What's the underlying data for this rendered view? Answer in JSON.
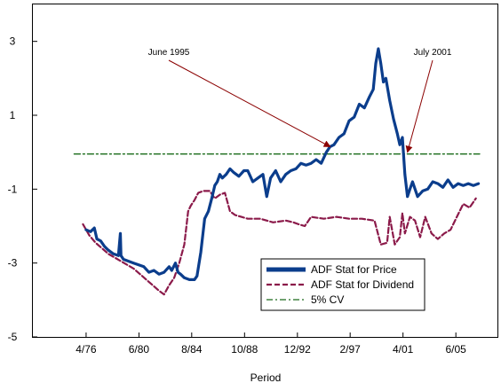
{
  "chart_data": {
    "type": "line",
    "title": "",
    "xlabel": "Period",
    "ylabel": "",
    "ylim": [
      -5,
      4
    ],
    "y_ticks": [
      3,
      1,
      -1,
      -3,
      -5
    ],
    "x_tick_labels": [
      "4/76",
      "6/80",
      "8/84",
      "10/88",
      "12/92",
      "2/97",
      "4/01",
      "6/05"
    ],
    "x_tick_values": [
      1976.25,
      1980.42,
      1984.58,
      1988.75,
      1992.92,
      1997.08,
      2001.25,
      2005.42
    ],
    "xlim": [
      1972.05,
      2008.7
    ],
    "grid": false,
    "legend_position": "bottom-right inside plot",
    "series": [
      {
        "name": "ADF Stat for Price",
        "color": "#0b3d8c",
        "style": "solid",
        "x": [
          1976.25,
          1976.6,
          1976.9,
          1977.1,
          1977.4,
          1977.7,
          1978.0,
          1978.4,
          1978.8,
          1978.95,
          1979.0,
          1979.2,
          1979.6,
          1980.0,
          1980.4,
          1980.8,
          1981.2,
          1981.6,
          1982.0,
          1982.4,
          1982.8,
          1983.0,
          1983.3,
          1983.5,
          1983.7,
          1984.0,
          1984.4,
          1984.8,
          1985.0,
          1985.3,
          1985.6,
          1985.9,
          1986.2,
          1986.4,
          1986.6,
          1986.8,
          1987.0,
          1987.3,
          1987.6,
          1987.9,
          1988.3,
          1988.7,
          1989.0,
          1989.4,
          1989.8,
          1990.2,
          1990.5,
          1990.8,
          1991.2,
          1991.6,
          1992.0,
          1992.4,
          1992.8,
          1993.2,
          1993.6,
          1994.0,
          1994.4,
          1994.8,
          1995.2,
          1995.5,
          1995.8,
          1996.2,
          1996.6,
          1997.0,
          1997.4,
          1997.8,
          1998.2,
          1998.6,
          1998.9,
          1999.1,
          1999.3,
          1999.5,
          1999.7,
          1999.9,
          2000.2,
          2000.5,
          2000.8,
          2001.0,
          2001.2,
          2001.4,
          2001.6,
          2001.8,
          2002.0,
          2002.4,
          2002.8,
          2003.2,
          2003.6,
          2004.0,
          2004.4,
          2004.8,
          2005.2,
          2005.6,
          2006.0,
          2006.4,
          2006.8,
          2007.2
        ],
        "y": [
          -2.1,
          -2.15,
          -2.05,
          -2.35,
          -2.4,
          -2.55,
          -2.65,
          -2.75,
          -2.8,
          -2.2,
          -2.8,
          -2.9,
          -2.95,
          -3.0,
          -3.05,
          -3.1,
          -3.25,
          -3.2,
          -3.3,
          -3.25,
          -3.1,
          -3.2,
          -3.0,
          -3.25,
          -3.3,
          -3.4,
          -3.45,
          -3.45,
          -3.35,
          -2.7,
          -1.8,
          -1.6,
          -1.2,
          -0.9,
          -0.8,
          -0.6,
          -0.7,
          -0.6,
          -0.45,
          -0.55,
          -0.65,
          -0.5,
          -0.5,
          -0.8,
          -0.7,
          -0.6,
          -1.2,
          -0.7,
          -0.5,
          -0.8,
          -0.6,
          -0.5,
          -0.45,
          -0.3,
          -0.35,
          -0.3,
          -0.2,
          -0.3,
          0.0,
          0.15,
          0.2,
          0.4,
          0.5,
          0.85,
          0.95,
          1.3,
          1.2,
          1.5,
          1.7,
          2.4,
          2.8,
          2.4,
          1.9,
          2.0,
          1.4,
          0.9,
          0.5,
          0.2,
          0.4,
          -0.6,
          -1.2,
          -1.0,
          -0.8,
          -1.2,
          -1.05,
          -1.0,
          -0.8,
          -0.85,
          -0.95,
          -0.75,
          -0.95,
          -0.85,
          -0.9,
          -0.85,
          -0.9,
          -0.85
        ]
      },
      {
        "name": "ADF Stat for Dividend",
        "color": "#8b1a4a",
        "style": "dashed",
        "x": [
          1976.0,
          1976.5,
          1977.0,
          1977.5,
          1978.0,
          1978.5,
          1979.0,
          1979.5,
          1980.0,
          1980.5,
          1981.0,
          1981.5,
          1982.0,
          1982.4,
          1982.8,
          1983.2,
          1983.6,
          1984.0,
          1984.3,
          1984.5,
          1984.8,
          1985.1,
          1985.5,
          1986.0,
          1986.4,
          1986.8,
          1987.2,
          1987.6,
          1988.0,
          1988.5,
          1989.0,
          1990.0,
          1991.0,
          1992.0,
          1992.6,
          1993.0,
          1993.5,
          1994.0,
          1995.0,
          1996.0,
          1997.0,
          1998.0,
          1999.0,
          1999.5,
          2000.0,
          2000.2,
          2000.6,
          2001.0,
          2001.2,
          2001.4,
          2001.8,
          2002.2,
          2002.6,
          2003.0,
          2003.5,
          2004.0,
          2004.5,
          2005.0,
          2005.5,
          2006.0,
          2006.5,
          2007.0
        ],
        "y": [
          -1.95,
          -2.25,
          -2.45,
          -2.6,
          -2.75,
          -2.85,
          -2.95,
          -3.05,
          -3.15,
          -3.3,
          -3.45,
          -3.6,
          -3.75,
          -3.85,
          -3.6,
          -3.4,
          -3.0,
          -2.5,
          -1.6,
          -1.45,
          -1.3,
          -1.1,
          -1.05,
          -1.05,
          -1.25,
          -1.15,
          -1.1,
          -1.6,
          -1.7,
          -1.75,
          -1.8,
          -1.8,
          -1.9,
          -1.85,
          -1.9,
          -1.95,
          -2.0,
          -1.75,
          -1.8,
          -1.75,
          -1.8,
          -1.8,
          -1.85,
          -2.5,
          -2.45,
          -1.75,
          -2.5,
          -2.3,
          -1.65,
          -2.2,
          -1.75,
          -1.85,
          -2.3,
          -1.75,
          -2.2,
          -2.35,
          -2.2,
          -2.1,
          -1.75,
          -1.4,
          -1.5,
          -1.25
        ]
      },
      {
        "name": "5% CV",
        "color": "#1a6b1a",
        "style": "dash-dot",
        "x": [
          1975.3,
          2007.3
        ],
        "y": [
          -0.05,
          -0.05
        ]
      }
    ],
    "annotations": [
      {
        "text": "June 1995",
        "x": 1995.5,
        "y": 0.15
      },
      {
        "text": "July 2001",
        "x": 2001.6,
        "y": 0.0
      }
    ]
  }
}
